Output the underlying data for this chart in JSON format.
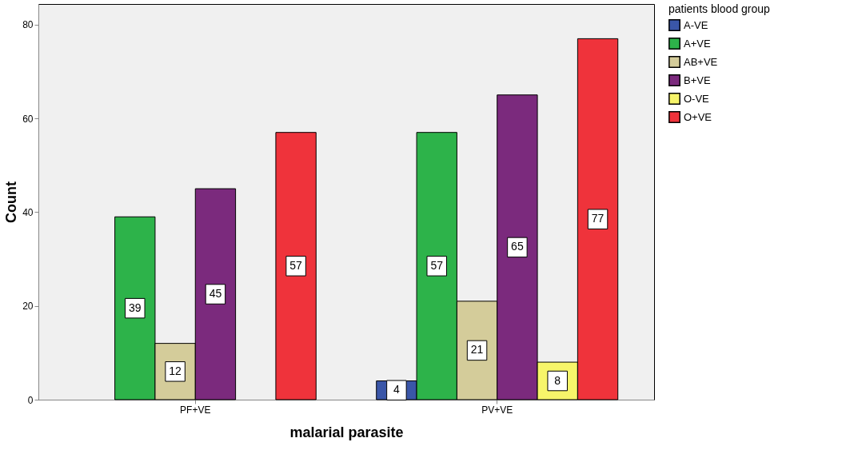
{
  "chart_data": {
    "type": "bar",
    "xlabel": "malarial parasite",
    "ylabel": "Count",
    "legend_title": "patients blood group",
    "legend": "top right",
    "data_labels": true,
    "categories": [
      "PF+VE",
      "PV+VE"
    ],
    "ylim": [
      0,
      84.4
    ],
    "yticks": [
      0,
      20,
      40,
      60,
      80
    ],
    "series": [
      {
        "name": "A-VE",
        "color": "#3a56a8",
        "values": [
          null,
          4
        ]
      },
      {
        "name": "A+VE",
        "color": "#2db34a",
        "values": [
          39,
          57
        ]
      },
      {
        "name": "AB+VE",
        "color": "#d4cc9a",
        "values": [
          12,
          21
        ]
      },
      {
        "name": "B+VE",
        "color": "#7b2a7d",
        "values": [
          45,
          65
        ]
      },
      {
        "name": "O-VE",
        "color": "#f7f56a",
        "values": [
          null,
          8
        ]
      },
      {
        "name": "O+VE",
        "color": "#ef333b",
        "values": [
          57,
          77
        ]
      }
    ]
  }
}
